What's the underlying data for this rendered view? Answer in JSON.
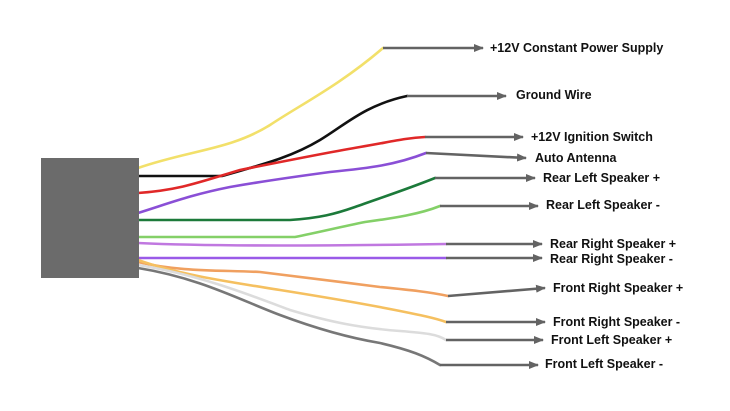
{
  "diagram": {
    "connector_color": "#6b6b6b",
    "arrow_color": "#636363",
    "wires": [
      {
        "id": "constant-power",
        "label": "+12V Constant Power Supply",
        "color": "#f2e06a"
      },
      {
        "id": "ground",
        "label": "Ground Wire",
        "color": "#111111"
      },
      {
        "id": "ignition",
        "label": "+12V Ignition Switch",
        "color": "#e02828"
      },
      {
        "id": "auto-antenna",
        "label": "Auto Antenna",
        "color": "#8a4fd6"
      },
      {
        "id": "rear-left-pos",
        "label": "Rear Left Speaker +",
        "color": "#1c7a3a"
      },
      {
        "id": "rear-left-neg",
        "label": "Rear Left Speaker -",
        "color": "#84d068"
      },
      {
        "id": "rear-right-pos",
        "label": "Rear Right Speaker +",
        "color": "#c078e0"
      },
      {
        "id": "rear-right-neg",
        "label": "Rear Right Speaker -",
        "color": "#9a5ae8"
      },
      {
        "id": "front-right-pos",
        "label": "Front Right Speaker +",
        "color": "#f0a060"
      },
      {
        "id": "front-right-neg",
        "label": "Front Right Speaker -",
        "color": "#f5c060"
      },
      {
        "id": "front-left-pos",
        "label": "Front Left Speaker +",
        "color": "#dcdcdc"
      },
      {
        "id": "front-left-neg",
        "label": "Front Left Speaker -",
        "color": "#777777"
      }
    ]
  }
}
